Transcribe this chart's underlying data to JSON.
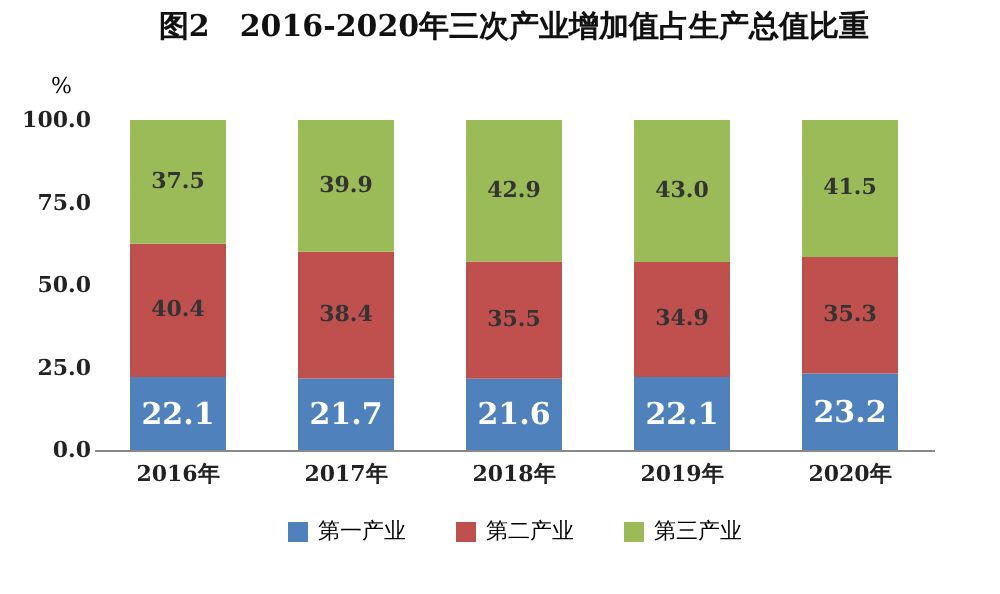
{
  "chart_data": {
    "type": "bar",
    "title": "图2　2016-2020年三次产业增加值占生产总值比重",
    "ylabel": "%",
    "categories": [
      "2016年",
      "2017年",
      "2018年",
      "2019年",
      "2020年"
    ],
    "series": [
      {
        "name": "第一产业",
        "color": "#4f81bd",
        "values": [
          22.1,
          21.7,
          21.6,
          22.1,
          23.2
        ]
      },
      {
        "name": "第二产业",
        "color": "#c0504d",
        "values": [
          40.4,
          38.4,
          35.5,
          34.9,
          35.3
        ]
      },
      {
        "name": "第三产业",
        "color": "#9bbb59",
        "values": [
          37.5,
          39.9,
          42.9,
          43.0,
          41.5
        ]
      }
    ],
    "stacked": true,
    "ylim": [
      0,
      100
    ],
    "yticks": [
      {
        "value": 0,
        "label": "0.0"
      },
      {
        "value": 25,
        "label": "25.0"
      },
      {
        "value": 50,
        "label": "50.0"
      },
      {
        "value": 75,
        "label": "75.0"
      },
      {
        "value": 100,
        "label": "100.0"
      }
    ],
    "value_labels": [
      [
        "22.1",
        "21.7",
        "21.6",
        "22.1",
        "23.2"
      ],
      [
        "40.4",
        "38.4",
        "35.5",
        "34.9",
        "35.3"
      ],
      [
        "37.5",
        "39.9",
        "42.9",
        "43.0",
        "41.5"
      ]
    ],
    "legend": "bottom",
    "grid": false
  }
}
